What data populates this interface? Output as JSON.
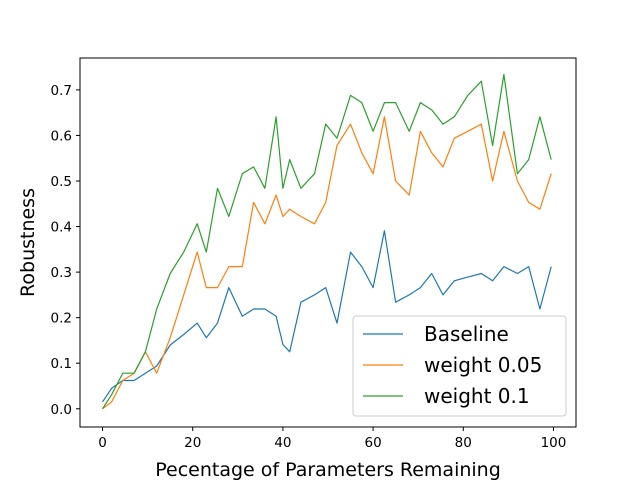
{
  "chart_data": {
    "type": "line",
    "xlabel": "Pecentage of Parameters Remaining",
    "ylabel": "Robustness",
    "xlim": [
      -5,
      105
    ],
    "ylim": [
      -0.04,
      0.77
    ],
    "xticks": [
      0,
      20,
      40,
      60,
      80,
      100
    ],
    "yticks": [
      0.0,
      0.1,
      0.2,
      0.3,
      0.4,
      0.5,
      0.6,
      0.7
    ],
    "grid": false,
    "legend_position": "bottom-right",
    "series": [
      {
        "name": "Baseline",
        "color": "#1f77b4",
        "x": [
          0,
          2,
          4.5,
          7,
          9.5,
          12,
          15,
          18,
          21,
          23,
          25.5,
          28,
          31,
          33.5,
          36,
          38.5,
          40,
          41.5,
          44,
          47,
          49.5,
          52,
          55,
          57.5,
          60,
          62.5,
          65,
          68,
          70.5,
          73,
          75.5,
          78,
          81,
          84,
          86.5,
          89,
          92,
          94.5,
          97,
          99.5
        ],
        "y": [
          0.015,
          0.045,
          0.062,
          0.062,
          0.078,
          0.094,
          0.14,
          0.163,
          0.188,
          0.156,
          0.188,
          0.266,
          0.203,
          0.219,
          0.219,
          0.203,
          0.141,
          0.125,
          0.234,
          0.25,
          0.266,
          0.188,
          0.344,
          0.312,
          0.266,
          0.391,
          0.234,
          0.25,
          0.266,
          0.297,
          0.25,
          0.281,
          0.289,
          0.297,
          0.281,
          0.312,
          0.297,
          0.312,
          0.219,
          0.312
        ]
      },
      {
        "name": "weight 0.05",
        "color": "#ff7f0e",
        "x": [
          0,
          2,
          4.5,
          7,
          9.5,
          12,
          15,
          18,
          21,
          23,
          25.5,
          28,
          31,
          33.5,
          36,
          38.5,
          40,
          41.5,
          44,
          47,
          49.5,
          52,
          55,
          57.5,
          60,
          62.5,
          65,
          68,
          70.5,
          73,
          75.5,
          78,
          81,
          84,
          86.5,
          89,
          92,
          94.5,
          97,
          99.5
        ],
        "y": [
          0.0,
          0.015,
          0.062,
          0.078,
          0.125,
          0.078,
          0.156,
          0.25,
          0.344,
          0.266,
          0.266,
          0.312,
          0.312,
          0.453,
          0.406,
          0.469,
          0.422,
          0.438,
          0.422,
          0.406,
          0.453,
          0.578,
          0.625,
          0.562,
          0.516,
          0.641,
          0.5,
          0.469,
          0.609,
          0.562,
          0.531,
          0.594,
          0.609,
          0.625,
          0.5,
          0.609,
          0.5,
          0.453,
          0.438,
          0.516
        ]
      },
      {
        "name": "weight 0.1",
        "color": "#2ca02c",
        "x": [
          0,
          2,
          4.5,
          7,
          9.5,
          12,
          15,
          18,
          21,
          23,
          25.5,
          28,
          31,
          33.5,
          36,
          38.5,
          40,
          41.5,
          44,
          47,
          49.5,
          52,
          55,
          57.5,
          60,
          62.5,
          65,
          68,
          70.5,
          73,
          75.5,
          78,
          81,
          84,
          86.5,
          89,
          92,
          94.5,
          97,
          99.5
        ],
        "y": [
          0.0,
          0.031,
          0.078,
          0.078,
          0.125,
          0.219,
          0.297,
          0.344,
          0.406,
          0.344,
          0.484,
          0.422,
          0.516,
          0.531,
          0.484,
          0.641,
          0.484,
          0.547,
          0.484,
          0.516,
          0.625,
          0.594,
          0.688,
          0.672,
          0.609,
          0.672,
          0.672,
          0.609,
          0.672,
          0.656,
          0.625,
          0.641,
          0.688,
          0.719,
          0.578,
          0.734,
          0.516,
          0.547,
          0.641,
          0.547
        ]
      }
    ]
  }
}
